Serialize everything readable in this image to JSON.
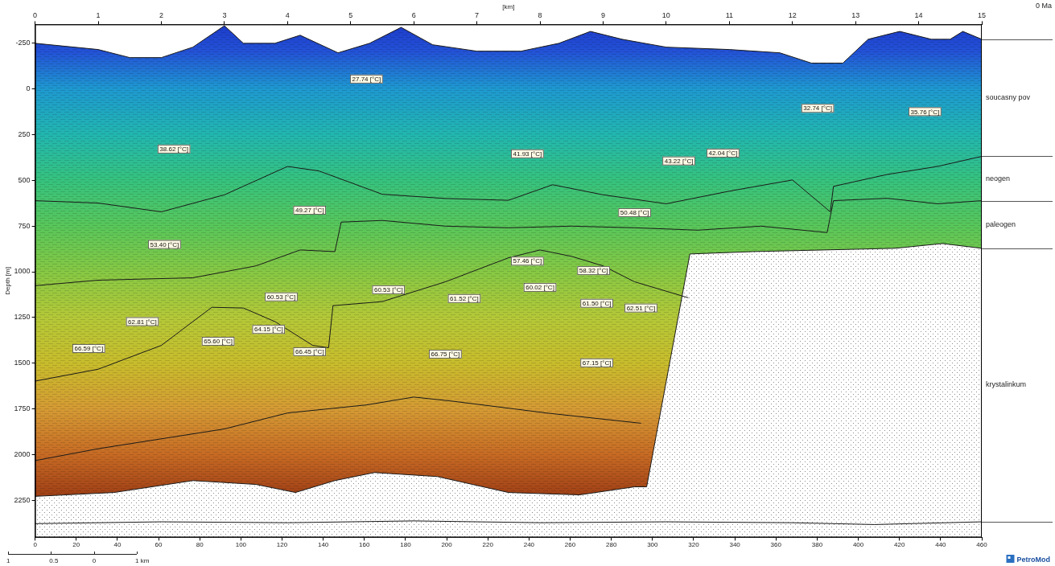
{
  "chart_data": {
    "type": "cross_section",
    "x_axis_label": "[km]",
    "y_axis_label": "Depth [m]",
    "time_label": "0 Ma",
    "logo": "PetroMod",
    "grid": false,
    "xlim": [
      0,
      15
    ],
    "xticks": [
      0,
      1,
      2,
      3,
      4,
      5,
      6,
      7,
      8,
      9,
      10,
      11,
      12,
      13,
      14,
      15
    ],
    "x2lim": [
      0,
      460
    ],
    "x2ticks": [
      0,
      20,
      40,
      60,
      80,
      100,
      120,
      140,
      160,
      180,
      200,
      220,
      240,
      260,
      280,
      300,
      320,
      340,
      360,
      380,
      400,
      420,
      440,
      460
    ],
    "ylim": [
      -350,
      2450
    ],
    "yticks": [
      -250,
      0,
      250,
      500,
      750,
      1000,
      1250,
      1500,
      1750,
      2000,
      2250
    ],
    "scale_bar": [
      "1",
      "0.5",
      "0",
      "1 km"
    ],
    "horizons": [
      {
        "unit": "soucasny pov",
        "x": [
          0,
          1,
          1.5,
          2,
          2.5,
          3,
          3.3,
          3.8,
          4.2,
          4.8,
          5.3,
          5.8,
          6.3,
          7,
          7.7,
          8.3,
          8.8,
          9.3,
          10,
          11,
          11.8,
          12.3,
          12.8,
          13.2,
          13.7,
          14.2,
          14.5,
          14.7,
          15
        ],
        "depth": [
          -247,
          -213,
          -169,
          -169,
          -226,
          -343,
          -247,
          -247,
          -291,
          -195,
          -247,
          -334,
          -239,
          -204,
          -204,
          -247,
          -312,
          -269,
          -226,
          -213,
          -195,
          -139,
          -139,
          -269,
          -312,
          -269,
          -269,
          -312,
          -269
        ]
      },
      {
        "unit": "neogen",
        "x": [
          0,
          1,
          2,
          3,
          4,
          4.5,
          5.5,
          6.5,
          7.5,
          8.2,
          9,
          10,
          11,
          12,
          12.6,
          12.65,
          13.5,
          14.3,
          15
        ],
        "depth": [
          612,
          625,
          673,
          580,
          425,
          450,
          577,
          600,
          610,
          525,
          580,
          629,
          560,
          499,
          673,
          534,
          469,
          425,
          370
        ]
      },
      {
        "unit": "paleogen",
        "x": [
          0,
          1,
          2.5,
          3.5,
          4.2,
          4.75,
          4.85,
          5.5,
          6.5,
          7.5,
          8.5,
          9.5,
          10.5,
          11.5,
          12.55,
          12.65,
          13.5,
          14.3,
          15
        ],
        "depth": [
          1076,
          1046,
          1033,
          968,
          881,
          890,
          729,
          720,
          751,
          760,
          751,
          760,
          773,
          751,
          786,
          612,
          599,
          629,
          612
        ]
      },
      {
        "x": [
          0,
          1,
          2,
          2.8,
          3.3,
          3.8,
          4.4,
          4.65,
          4.72,
          5.5,
          6.5,
          7.5,
          8,
          8.5,
          9,
          9.5,
          10.35
        ],
        "depth": [
          1597,
          1532,
          1402,
          1194,
          1198,
          1272,
          1402,
          1415,
          1185,
          1163,
          1055,
          924,
          881,
          916,
          968,
          1055,
          1142
        ]
      },
      {
        "x": [
          0,
          1,
          3,
          4,
          5.25,
          6,
          6.6,
          7.6,
          8.1,
          9.6
        ],
        "depth": [
          2031,
          1966,
          1858,
          1771,
          1727,
          1684,
          1706,
          1749,
          1771,
          1827
        ]
      },
      {
        "unit": "krystalinkum",
        "x": [
          0,
          1.25,
          2.5,
          3.5,
          4.125,
          4.75,
          5.375,
          6.375,
          7.5,
          8.625,
          9.5,
          9.69,
          10.375,
          11.375,
          12.5,
          13.625,
          14.375,
          15
        ],
        "depth": [
          2226,
          2205,
          2140,
          2161,
          2205,
          2140,
          2096,
          2118,
          2205,
          2218,
          2174,
          2174,
          903,
          890,
          881,
          872,
          846,
          872
        ]
      },
      {
        "x": [
          0,
          2,
          4,
          6,
          8,
          10,
          12,
          13.3,
          15
        ],
        "depth": [
          2375,
          2365,
          2370,
          2360,
          2370,
          2365,
          2370,
          2380,
          2365
        ]
      }
    ],
    "temperature_colors": [
      {
        "depth": -350,
        "color": "#1d3bcc"
      },
      {
        "depth": -200,
        "color": "#2352d6"
      },
      {
        "depth": 0,
        "color": "#1e98d0"
      },
      {
        "depth": 250,
        "color": "#22b6b0"
      },
      {
        "depth": 500,
        "color": "#36c27e"
      },
      {
        "depth": 750,
        "color": "#58c65a"
      },
      {
        "depth": 1000,
        "color": "#86c844"
      },
      {
        "depth": 1250,
        "color": "#b4c838"
      },
      {
        "depth": 1500,
        "color": "#c8bc2c"
      },
      {
        "depth": 1750,
        "color": "#d49a34"
      },
      {
        "depth": 2000,
        "color": "#c66a24"
      },
      {
        "depth": 2250,
        "color": "#9a3a14"
      },
      {
        "depth": 2450,
        "color": "#8a3210"
      }
    ],
    "temperature_labels": [
      {
        "text": "27.74 [°C]",
        "x": 5.25,
        "depth": -52
      },
      {
        "text": "32.74 [°C]",
        "x": 12.4,
        "depth": 108
      },
      {
        "text": "35.76 [°C]",
        "x": 14.1,
        "depth": 126
      },
      {
        "text": "38.62 [°C]",
        "x": 2.2,
        "depth": 330
      },
      {
        "text": "41.93 [°C]",
        "x": 7.8,
        "depth": 356
      },
      {
        "text": "43.22 [°C]",
        "x": 10.2,
        "depth": 395
      },
      {
        "text": "42.04 [°C]",
        "x": 10.9,
        "depth": 352
      },
      {
        "text": "49.27 [°C]",
        "x": 4.35,
        "depth": 664
      },
      {
        "text": "50.48 [°C]",
        "x": 9.5,
        "depth": 677
      },
      {
        "text": "53.40 [°C]",
        "x": 2.05,
        "depth": 851
      },
      {
        "text": "57.46 [°C]",
        "x": 7.8,
        "depth": 942
      },
      {
        "text": "58.32 [°C]",
        "x": 8.85,
        "depth": 994
      },
      {
        "text": "60.53 [°C]",
        "x": 3.9,
        "depth": 1137
      },
      {
        "text": "60.53 [°C]",
        "x": 5.6,
        "depth": 1098
      },
      {
        "text": "60.02 [°C]",
        "x": 8.0,
        "depth": 1085
      },
      {
        "text": "61.52 [°C]",
        "x": 6.8,
        "depth": 1146
      },
      {
        "text": "61.50 [°C]",
        "x": 8.9,
        "depth": 1172
      },
      {
        "text": "62.51 [°C]",
        "x": 9.6,
        "depth": 1198
      },
      {
        "text": "62.81 [°C]",
        "x": 1.7,
        "depth": 1272
      },
      {
        "text": "64.15 [°C]",
        "x": 3.7,
        "depth": 1315
      },
      {
        "text": "65.60 [°C]",
        "x": 2.9,
        "depth": 1380
      },
      {
        "text": "66.45 [°C]",
        "x": 4.35,
        "depth": 1437
      },
      {
        "text": "66.59 [°C]",
        "x": 0.85,
        "depth": 1419
      },
      {
        "text": "66.75 [°C]",
        "x": 6.5,
        "depth": 1450
      },
      {
        "text": "67.15 [°C]",
        "x": 8.9,
        "depth": 1497
      }
    ]
  }
}
